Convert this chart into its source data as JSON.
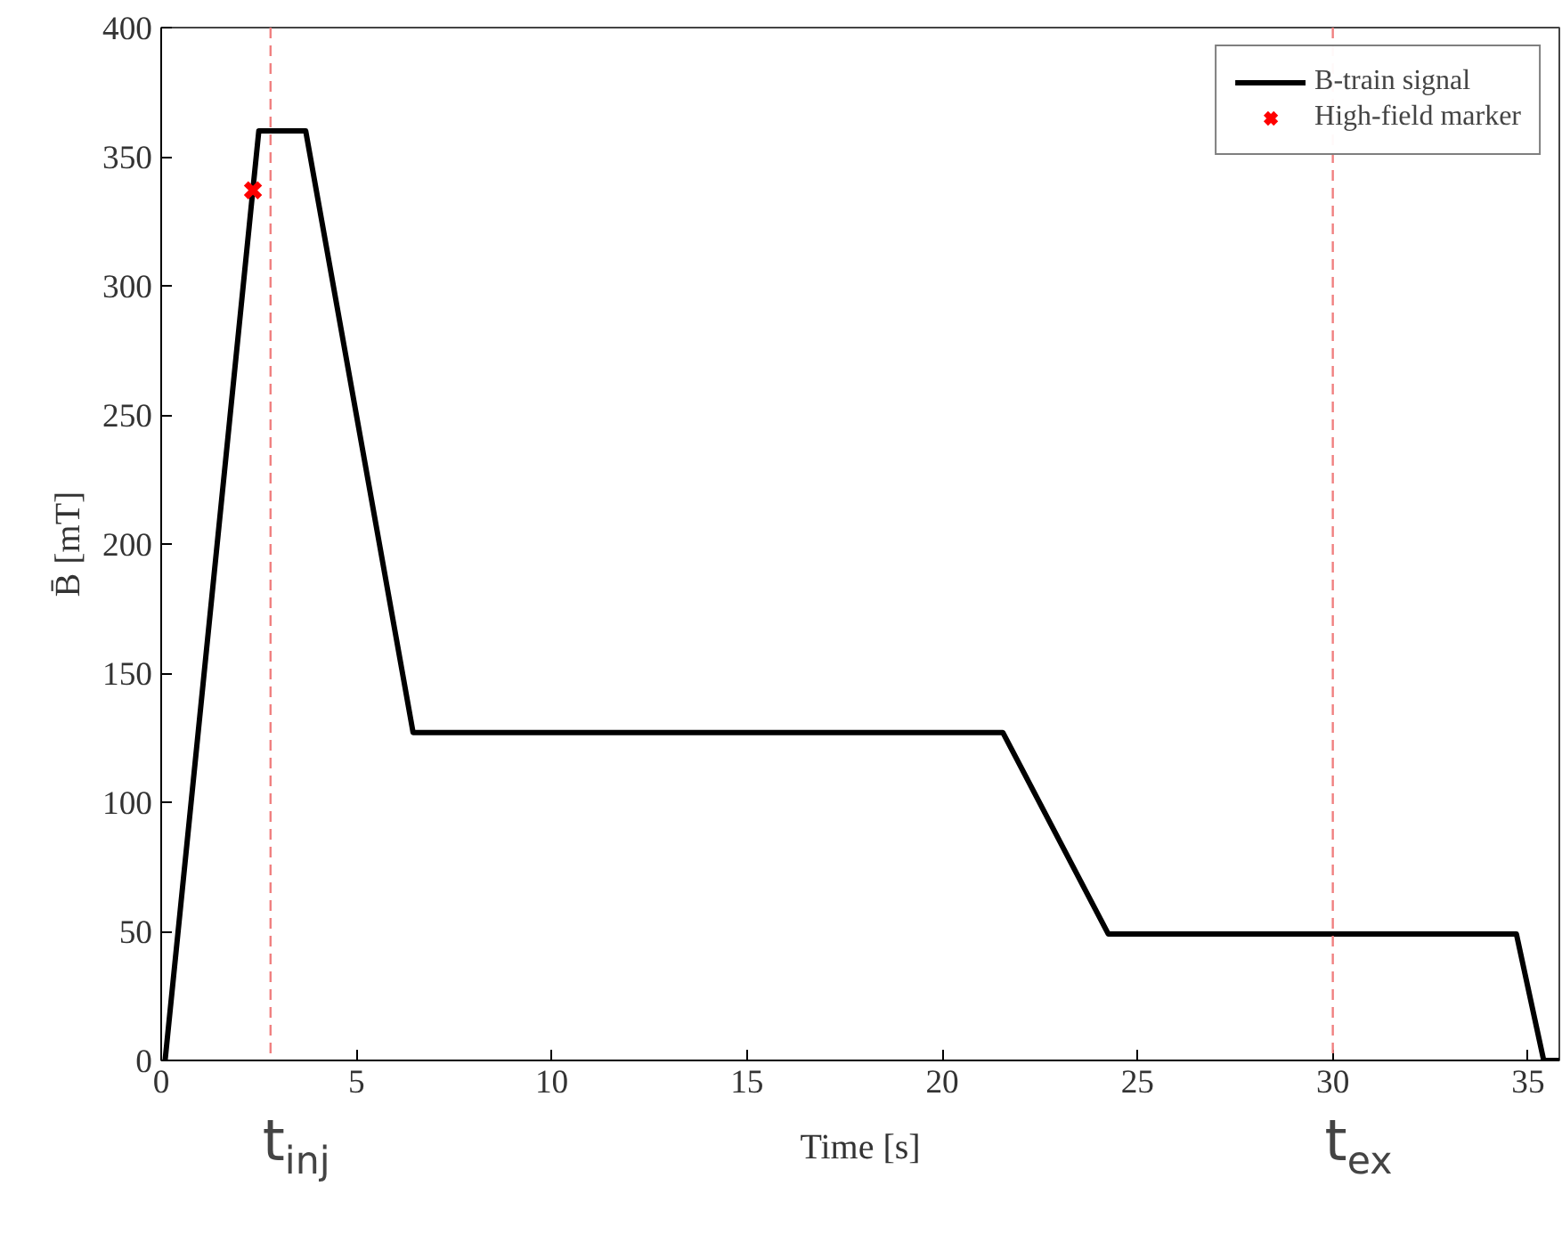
{
  "chart_data": {
    "type": "line",
    "xlabel": "Time [s]",
    "ylabel": "B̄ [mT]",
    "xlim": [
      0,
      35.8
    ],
    "ylim": [
      0,
      400
    ],
    "xticks": [
      0,
      5,
      10,
      15,
      20,
      25,
      30,
      35
    ],
    "yticks": [
      0,
      50,
      100,
      150,
      200,
      250,
      300,
      350,
      400
    ],
    "series": [
      {
        "name": "B-train signal",
        "color": "#000000",
        "type": "line",
        "x": [
          0.1,
          2.5,
          3.7,
          6.45,
          21.55,
          24.25,
          34.7,
          35.4,
          35.8
        ],
        "values": [
          0,
          360,
          360,
          127,
          127,
          49,
          49,
          0,
          0
        ]
      },
      {
        "name": "High-field marker",
        "color": "#ff0000",
        "type": "scatter",
        "marker": "cross",
        "x": [
          2.35
        ],
        "values": [
          337
        ]
      }
    ],
    "ref_lines": [
      {
        "axis": "x",
        "value": 2.8,
        "label": "t$_{inj}$",
        "color": "#f08080",
        "line_style": "dashed"
      },
      {
        "axis": "x",
        "value": 30,
        "label": "t$_{ex}$",
        "color": "#f08080",
        "line_style": "dashed"
      }
    ],
    "grid": false,
    "legend": "top right"
  }
}
